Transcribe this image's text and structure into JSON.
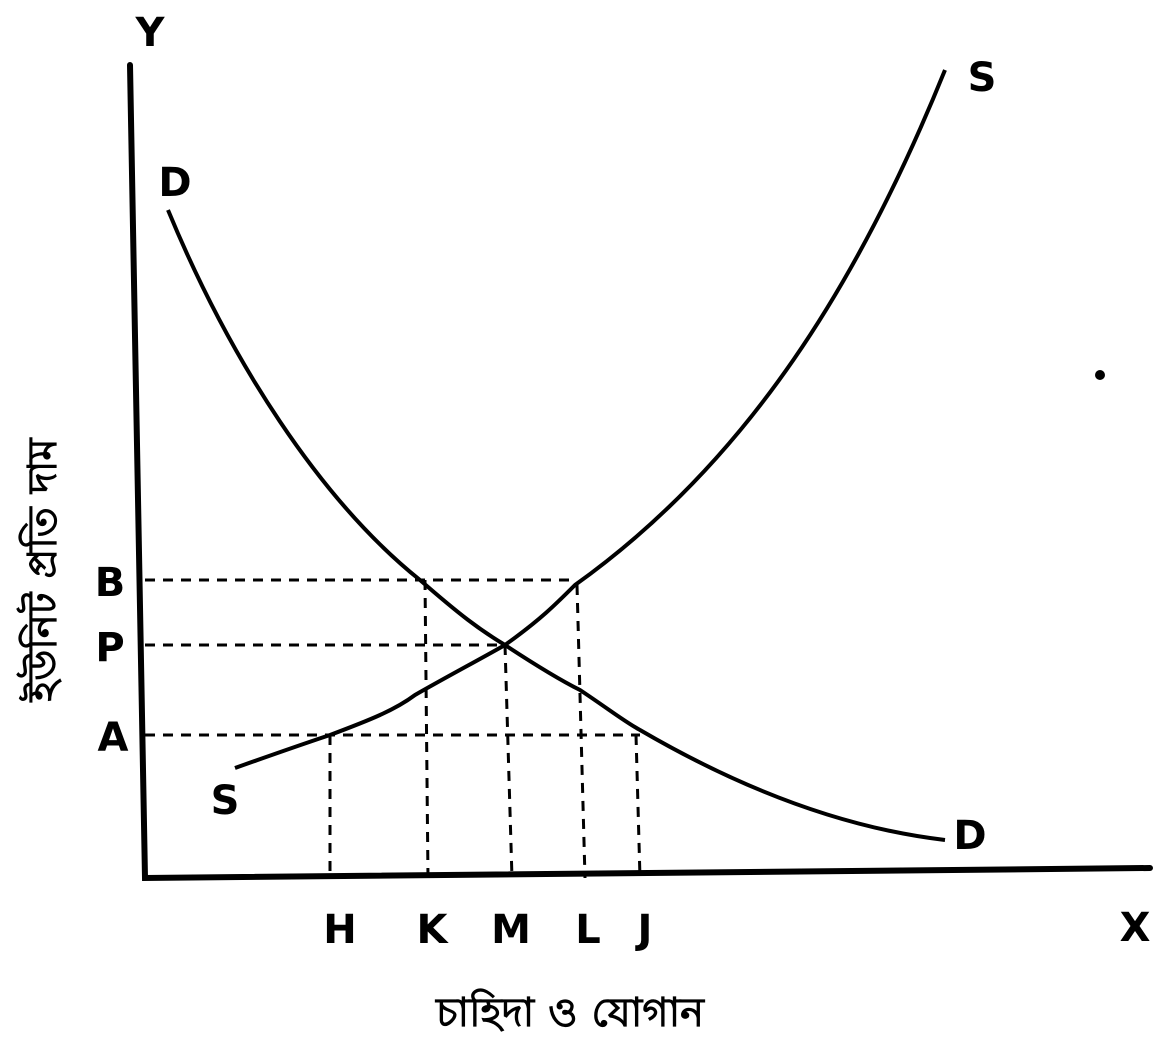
{
  "axes": {
    "y": "Y",
    "x": "X"
  },
  "axis_titles": {
    "y": "ইউনিট প্রতি দাম",
    "x": "চাহিদা ও যোগান"
  },
  "curves": {
    "demand": [
      "D",
      "D"
    ],
    "supply": [
      "S",
      "S"
    ]
  },
  "price_levels": [
    "B",
    "P",
    "A"
  ],
  "quantity_levels": [
    "H",
    "K",
    "M",
    "L",
    "J"
  ]
}
